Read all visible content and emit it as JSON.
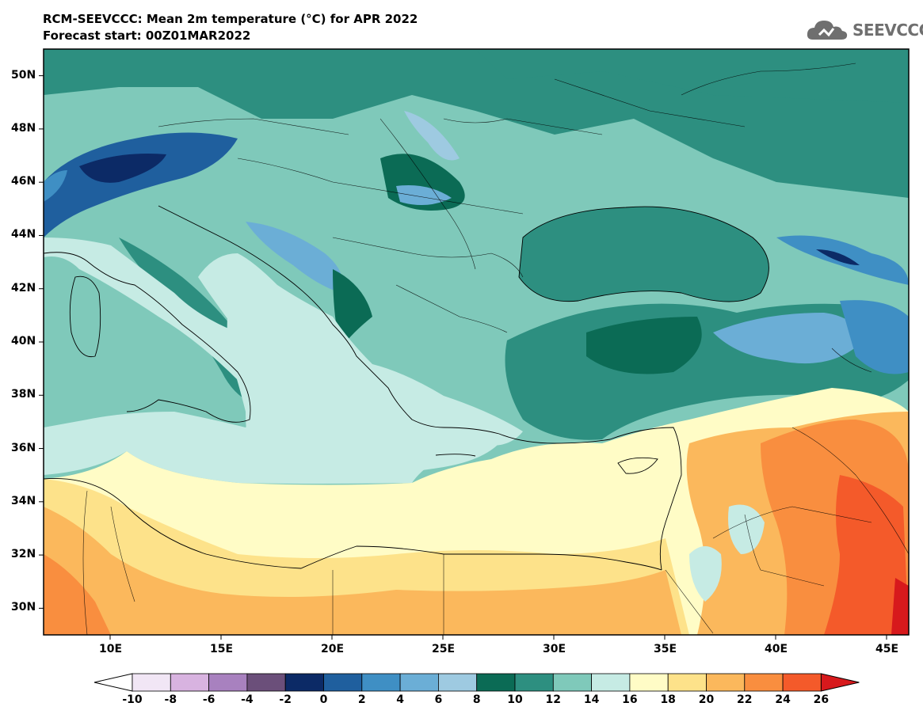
{
  "header": {
    "title_line1": "RCM-SEEVCCC: Mean 2m temperature (°C) for APR 2022",
    "title_line2": "Forecast start: 00Z01MAR2022"
  },
  "logo": {
    "text": "SEEVCCC",
    "icon": "cloud-icon"
  },
  "map": {
    "lon_range": [
      7,
      46
    ],
    "lat_range": [
      29,
      51
    ],
    "lat_ticks": [
      "50N",
      "48N",
      "46N",
      "44N",
      "42N",
      "40N",
      "38N",
      "36N",
      "34N",
      "32N",
      "30N"
    ],
    "lon_ticks": [
      "10E",
      "15E",
      "20E",
      "25E",
      "30E",
      "35E",
      "40E",
      "45E"
    ]
  },
  "colorbar": {
    "labels": [
      "-10",
      "-8",
      "-6",
      "-4",
      "-2",
      "0",
      "2",
      "4",
      "6",
      "8",
      "10",
      "12",
      "14",
      "16",
      "18",
      "20",
      "22",
      "24",
      "26"
    ],
    "colors": [
      "#f1e6f5",
      "#d8b3e0",
      "#a881bf",
      "#6b4f7a",
      "#0c2a66",
      "#1f5f9e",
      "#3f8fc4",
      "#6baed6",
      "#9ecae1",
      "#0b6b55",
      "#2d8f80",
      "#7fc9ba",
      "#c6ebe4",
      "#fffcc6",
      "#fde28a",
      "#fbb85c",
      "#f98e3f",
      "#f45a2a"
    ],
    "low_end_color": "#ffffff",
    "high_end_color": "#d7191c"
  },
  "colors": {
    "sea_med": "#c6ebe4",
    "sea_black": "#2d8f80",
    "land_default": "#7fc9ba"
  }
}
